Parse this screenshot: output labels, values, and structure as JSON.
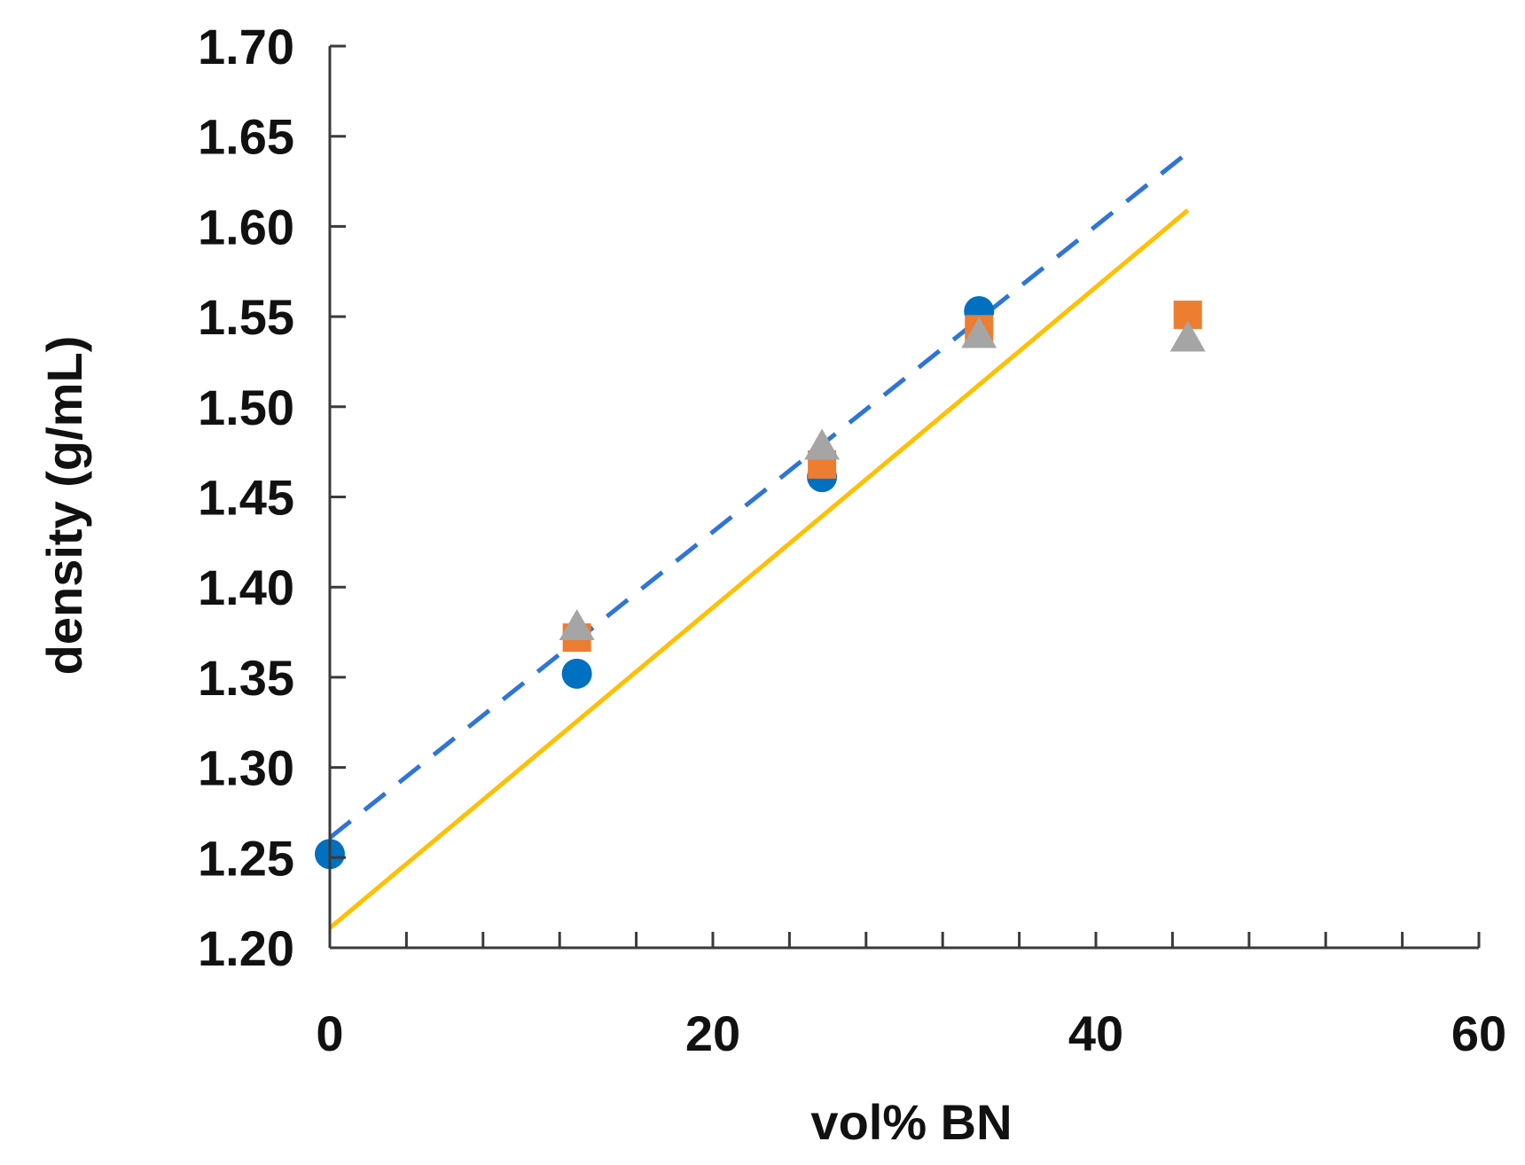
{
  "chart_data": {
    "type": "scatter",
    "title": "",
    "xlabel": "vol% BN",
    "ylabel": "density (g/mL)",
    "xlim": [
      0,
      60
    ],
    "ylim": [
      1.2,
      1.7
    ],
    "x_ticks": [
      "0",
      "20",
      "40",
      "60"
    ],
    "y_ticks": [
      "1.20",
      "1.25",
      "1.30",
      "1.35",
      "1.40",
      "1.45",
      "1.50",
      "1.55",
      "1.60",
      "1.65",
      "1.70"
    ],
    "x_minor_tick_step": 4,
    "grid": false,
    "legend": "none",
    "series": [
      {
        "marker": "circle",
        "color": "#0070C0",
        "points": [
          [
            0,
            1.252
          ],
          [
            12.9,
            1.352
          ],
          [
            25.7,
            1.461
          ],
          [
            33.9,
            1.553
          ]
        ]
      },
      {
        "marker": "square",
        "color": "#ED7D31",
        "points": [
          [
            12.9,
            1.372
          ],
          [
            25.7,
            1.468
          ],
          [
            33.9,
            1.543
          ],
          [
            44.8,
            1.551
          ]
        ]
      },
      {
        "marker": "triangle",
        "color": "#A5A5A5",
        "points": [
          [
            12.9,
            1.378
          ],
          [
            25.7,
            1.478
          ],
          [
            33.9,
            1.54
          ],
          [
            44.8,
            1.538
          ]
        ]
      }
    ],
    "lines": [
      {
        "style": "dashed",
        "color": "#2E75D6",
        "points": [
          [
            0,
            1.261
          ],
          [
            44.8,
            1.641
          ]
        ]
      },
      {
        "style": "solid",
        "color": "#FFC000",
        "points": [
          [
            0,
            1.211
          ],
          [
            44.8,
            1.609
          ]
        ]
      }
    ]
  }
}
